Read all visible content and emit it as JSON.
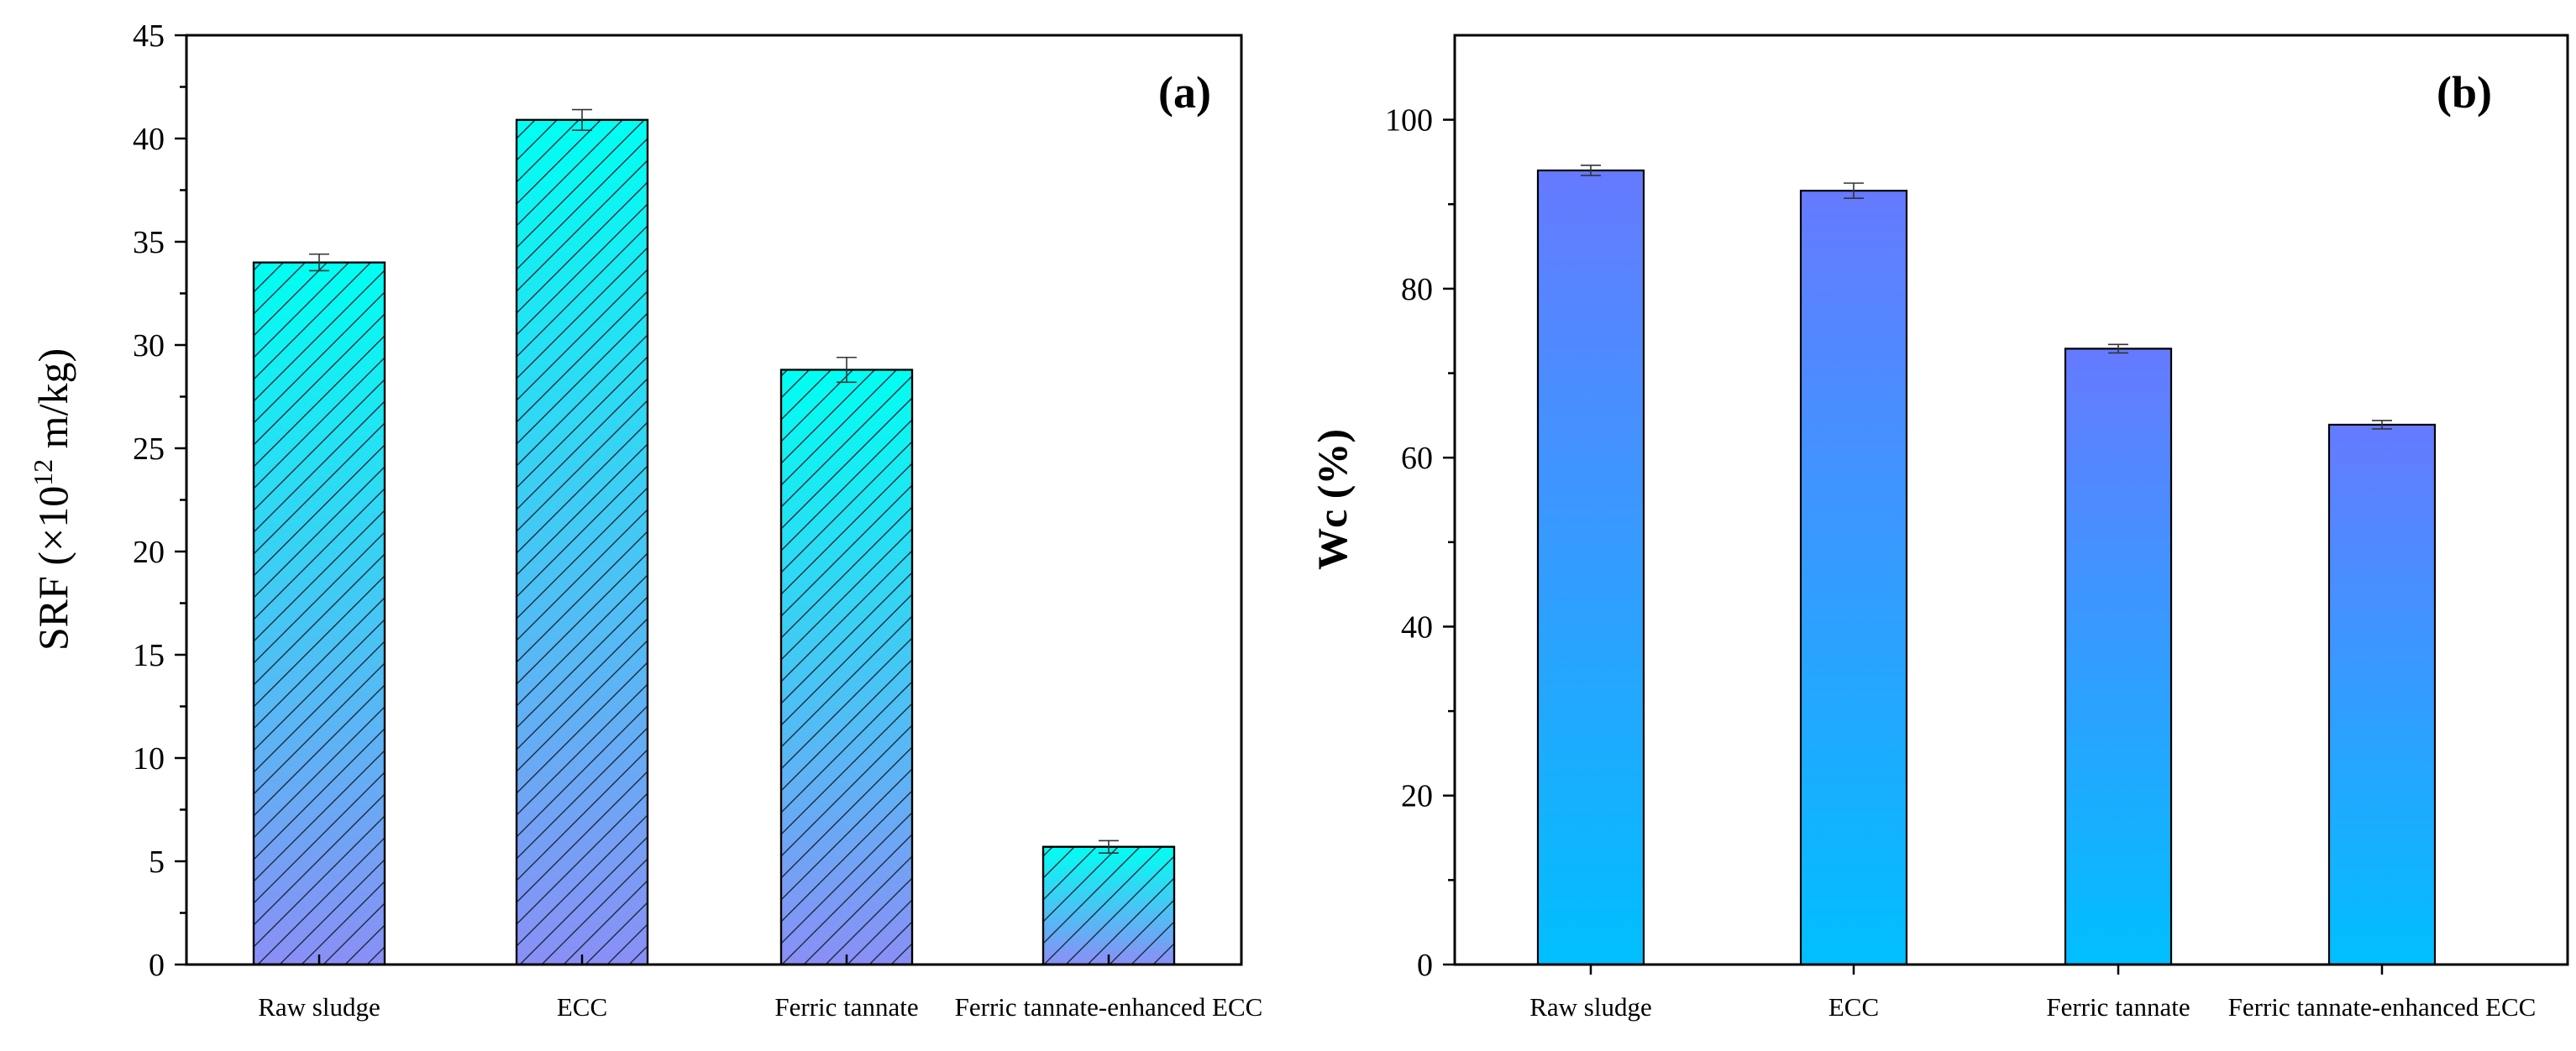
{
  "chart_data": [
    {
      "panel": "(a)",
      "type": "bar",
      "categories": [
        "Raw sludge",
        "ECC",
        "Ferric tannate",
        "Ferric tannate-enhanced ECC"
      ],
      "values": [
        34.0,
        40.9,
        28.8,
        5.7
      ],
      "errors": [
        0.4,
        0.5,
        0.6,
        0.3
      ],
      "ylabel_main": "SRF (×10",
      "ylabel_sup": "12",
      "ylabel_tail": " m/kg)",
      "xlabel": "",
      "ylim": [
        0,
        45
      ],
      "yticks": [
        0,
        5,
        10,
        15,
        20,
        25,
        30,
        35,
        40,
        45
      ],
      "fill": {
        "top": "#00FFF2",
        "bottom": "#8A8FF5",
        "hatch": "diagonal"
      },
      "grid": false
    },
    {
      "panel": "(b)",
      "type": "bar",
      "categories": [
        "Raw sludge",
        "ECC",
        "Ferric tannate",
        "Ferric tannate-enhanced ECC"
      ],
      "values": [
        94.0,
        91.6,
        72.9,
        63.9
      ],
      "errors": [
        0.6,
        0.9,
        0.5,
        0.5
      ],
      "ylabel": "Wc (%)",
      "xlabel": "",
      "ylim": [
        0,
        110
      ],
      "yticks": [
        0,
        20,
        40,
        60,
        80,
        100
      ],
      "fill": {
        "top": "#667AFF",
        "bottom": "#00BFFF",
        "hatch": "none"
      },
      "grid": false
    }
  ]
}
